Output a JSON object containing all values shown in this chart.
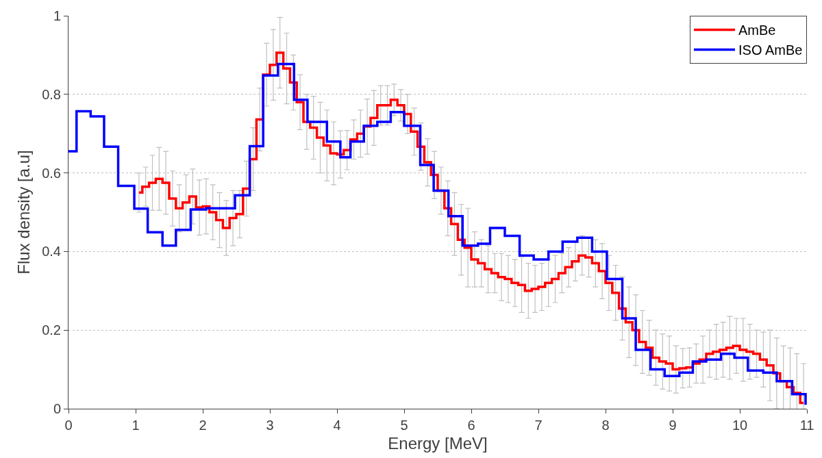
{
  "chart_data": {
    "type": "step",
    "xlabel": "Energy [MeV]",
    "ylabel": "Flux density [a.u]",
    "xlim": [
      0,
      11
    ],
    "ylim": [
      0,
      1
    ],
    "xticks": [
      0,
      1,
      2,
      3,
      4,
      5,
      6,
      7,
      8,
      9,
      10,
      11
    ],
    "yticks": [
      0,
      0.2,
      0.4,
      0.6,
      0.8,
      1
    ],
    "grid": "y",
    "legend": "top right",
    "marker": "none",
    "line_style": "solid",
    "series": [
      {
        "name": "AmBe",
        "color": "#ff0000",
        "x": [
          1.05,
          1.15,
          1.25,
          1.35,
          1.45,
          1.55,
          1.65,
          1.75,
          1.85,
          1.95,
          2.05,
          2.15,
          2.25,
          2.35,
          2.45,
          2.55,
          2.65,
          2.75,
          2.85,
          2.95,
          3.05,
          3.15,
          3.25,
          3.35,
          3.45,
          3.55,
          3.65,
          3.75,
          3.85,
          3.95,
          4.05,
          4.15,
          4.25,
          4.35,
          4.45,
          4.55,
          4.65,
          4.75,
          4.85,
          4.95,
          5.05,
          5.15,
          5.25,
          5.35,
          5.45,
          5.55,
          5.65,
          5.75,
          5.85,
          5.95,
          6.05,
          6.15,
          6.25,
          6.35,
          6.45,
          6.55,
          6.65,
          6.75,
          6.85,
          6.95,
          7.05,
          7.15,
          7.25,
          7.35,
          7.45,
          7.55,
          7.65,
          7.75,
          7.85,
          7.95,
          8.05,
          8.15,
          8.25,
          8.35,
          8.45,
          8.55,
          8.65,
          8.75,
          8.85,
          8.95,
          9.05,
          9.15,
          9.25,
          9.35,
          9.45,
          9.55,
          9.65,
          9.75,
          9.85,
          9.95,
          10.05,
          10.15,
          10.25,
          10.35,
          10.45,
          10.55,
          10.65,
          10.75,
          10.85,
          10.95
        ],
        "values": [
          0.55,
          0.565,
          0.575,
          0.585,
          0.575,
          0.535,
          0.51,
          0.525,
          0.54,
          0.512,
          0.515,
          0.5,
          0.48,
          0.46,
          0.485,
          0.495,
          0.56,
          0.635,
          0.736,
          0.85,
          0.875,
          0.906,
          0.866,
          0.83,
          0.78,
          0.73,
          0.715,
          0.69,
          0.67,
          0.65,
          0.647,
          0.658,
          0.685,
          0.7,
          0.718,
          0.74,
          0.772,
          0.772,
          0.786,
          0.772,
          0.75,
          0.705,
          0.667,
          0.627,
          0.595,
          0.555,
          0.51,
          0.47,
          0.43,
          0.41,
          0.38,
          0.37,
          0.355,
          0.345,
          0.335,
          0.33,
          0.32,
          0.315,
          0.3,
          0.305,
          0.31,
          0.32,
          0.33,
          0.345,
          0.36,
          0.375,
          0.39,
          0.385,
          0.37,
          0.35,
          0.32,
          0.295,
          0.255,
          0.22,
          0.2,
          0.17,
          0.155,
          0.13,
          0.12,
          0.115,
          0.1,
          0.103,
          0.105,
          0.115,
          0.125,
          0.14,
          0.145,
          0.15,
          0.155,
          0.16,
          0.15,
          0.145,
          0.14,
          0.125,
          0.11,
          0.09,
          0.07,
          0.055,
          0.04,
          0.015
        ],
        "errors": [
          0.05,
          0.05,
          0.07,
          0.08,
          0.08,
          0.07,
          0.06,
          0.07,
          0.07,
          0.07,
          0.07,
          0.07,
          0.07,
          0.07,
          0.07,
          0.06,
          0.07,
          0.08,
          0.08,
          0.08,
          0.09,
          0.09,
          0.09,
          0.07,
          0.07,
          0.07,
          0.08,
          0.09,
          0.09,
          0.08,
          0.06,
          0.05,
          0.05,
          0.06,
          0.07,
          0.07,
          0.05,
          0.05,
          0.04,
          0.04,
          0.05,
          0.06,
          0.06,
          0.06,
          0.06,
          0.06,
          0.07,
          0.08,
          0.09,
          0.1,
          0.07,
          0.06,
          0.06,
          0.05,
          0.06,
          0.06,
          0.06,
          0.07,
          0.07,
          0.06,
          0.06,
          0.06,
          0.06,
          0.05,
          0.05,
          0.05,
          0.05,
          0.05,
          0.06,
          0.07,
          0.07,
          0.07,
          0.08,
          0.09,
          0.09,
          0.08,
          0.07,
          0.07,
          0.07,
          0.07,
          0.06,
          0.05,
          0.05,
          0.05,
          0.06,
          0.06,
          0.07,
          0.07,
          0.08,
          0.07,
          0.08,
          0.07,
          0.06,
          0.07,
          0.09,
          0.09,
          0.09,
          0.1,
          0.1,
          0.1
        ]
      },
      {
        "name": "ISO AmBe",
        "color": "#0000ff",
        "x": [
          0,
          0.12,
          0.33,
          0.53,
          0.74,
          0.98,
          1.18,
          1.4,
          1.6,
          1.82,
          2.05,
          2.48,
          2.7,
          2.9,
          3.12,
          3.36,
          3.56,
          3.85,
          4.05,
          4.2,
          4.4,
          4.6,
          4.8,
          5.0,
          5.24,
          5.44,
          5.66,
          5.87,
          6.1,
          6.28,
          6.5,
          6.72,
          6.93,
          7.15,
          7.36,
          7.58,
          7.8,
          8.02,
          8.25,
          8.45,
          8.67,
          8.88,
          9.1,
          9.3,
          9.5,
          9.72,
          9.92,
          10.12,
          10.35,
          10.55,
          10.78,
          10.98
        ],
        "values": [
          0.655,
          0.757,
          0.744,
          0.667,
          0.567,
          0.509,
          0.449,
          0.415,
          0.455,
          0.507,
          0.51,
          0.543,
          0.668,
          0.848,
          0.877,
          0.786,
          0.73,
          0.68,
          0.64,
          0.68,
          0.72,
          0.73,
          0.755,
          0.72,
          0.62,
          0.555,
          0.49,
          0.415,
          0.42,
          0.46,
          0.44,
          0.39,
          0.38,
          0.4,
          0.425,
          0.435,
          0.4,
          0.33,
          0.23,
          0.15,
          0.1,
          0.083,
          0.092,
          0.12,
          0.125,
          0.14,
          0.13,
          0.097,
          0.092,
          0.07,
          0.037,
          0.01
        ]
      }
    ]
  }
}
